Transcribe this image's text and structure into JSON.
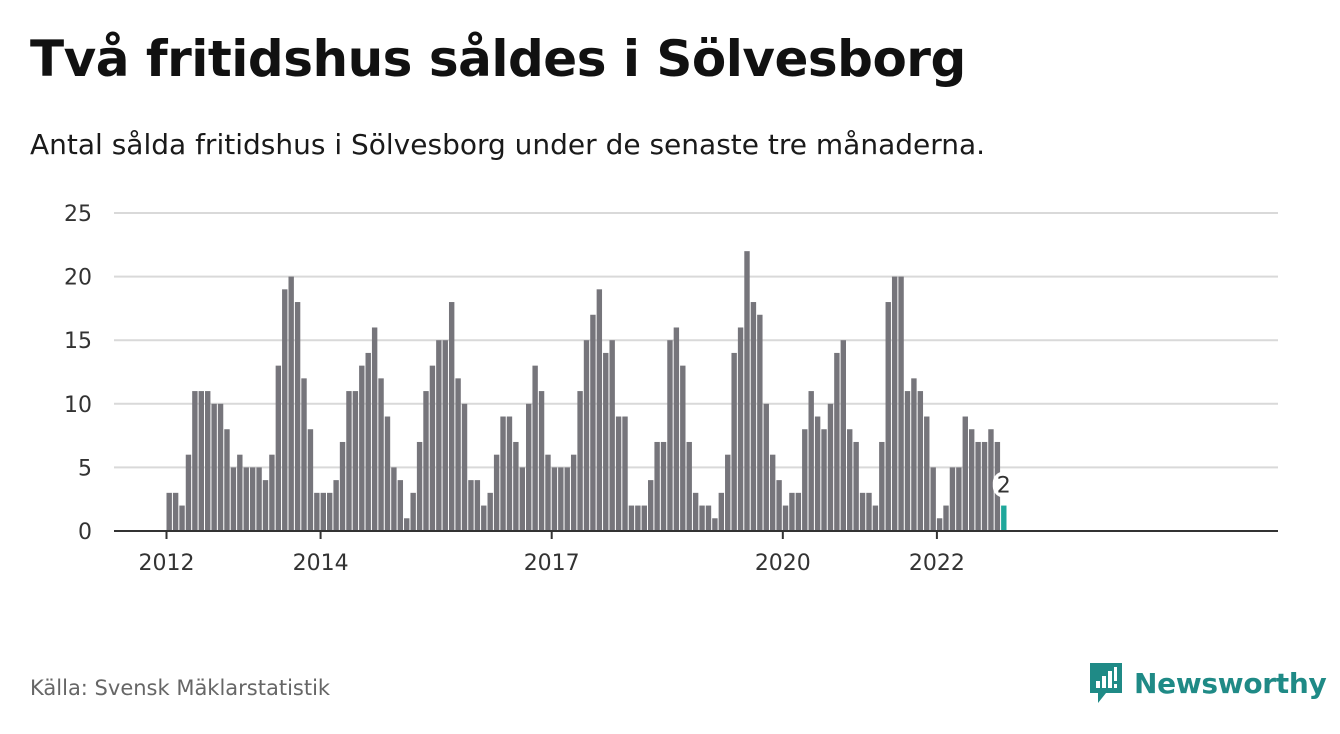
{
  "header": {
    "title": "Två fritidshus såldes i Sölvesborg",
    "subtitle": "Antal sålda fritidshus i Sölvesborg under de senaste tre månaderna."
  },
  "footer": {
    "source": "Källa: Svensk Mäklarstatistik",
    "brand": "Newsworthy"
  },
  "colors": {
    "bar": "#76757b",
    "highlight": "#1fa79b",
    "grid": "#d9d9d9",
    "axis": "#333333",
    "brand": "#1f8a86"
  },
  "chart_data": {
    "type": "bar",
    "title": "Två fritidshus såldes i Sölvesborg",
    "subtitle": "Antal sålda fritidshus i Sölvesborg under de senaste tre månaderna.",
    "xlabel": "",
    "ylabel": "",
    "ylim": [
      0,
      25
    ],
    "yticks": [
      0,
      5,
      10,
      15,
      20,
      25
    ],
    "grid": true,
    "x_tick_labels": [
      {
        "label": "2012",
        "index": 0
      },
      {
        "label": "2014",
        "index": 24
      },
      {
        "label": "2017",
        "index": 60
      },
      {
        "label": "2020",
        "index": 96
      },
      {
        "label": "2022",
        "index": 120
      }
    ],
    "values": [
      3,
      3,
      2,
      6,
      11,
      11,
      11,
      10,
      10,
      8,
      5,
      6,
      5,
      5,
      5,
      4,
      6,
      13,
      19,
      20,
      18,
      12,
      8,
      3,
      3,
      3,
      4,
      7,
      11,
      11,
      13,
      14,
      16,
      12,
      9,
      5,
      4,
      1,
      3,
      7,
      11,
      13,
      15,
      15,
      18,
      12,
      10,
      4,
      4,
      2,
      3,
      6,
      9,
      9,
      7,
      5,
      10,
      13,
      11,
      6,
      5,
      5,
      5,
      6,
      11,
      15,
      17,
      19,
      14,
      15,
      9,
      9,
      2,
      2,
      2,
      4,
      7,
      7,
      15,
      16,
      13,
      7,
      3,
      2,
      2,
      1,
      3,
      6,
      14,
      16,
      22,
      18,
      17,
      10,
      6,
      4,
      2,
      3,
      3,
      8,
      11,
      9,
      8,
      10,
      14,
      15,
      8,
      7,
      3,
      3,
      2,
      7,
      18,
      20,
      20,
      11,
      12,
      11,
      9,
      5,
      1,
      2,
      5,
      5,
      9,
      8,
      7,
      7,
      8,
      7,
      2
    ],
    "highlight_last": true,
    "annotation": "2"
  }
}
